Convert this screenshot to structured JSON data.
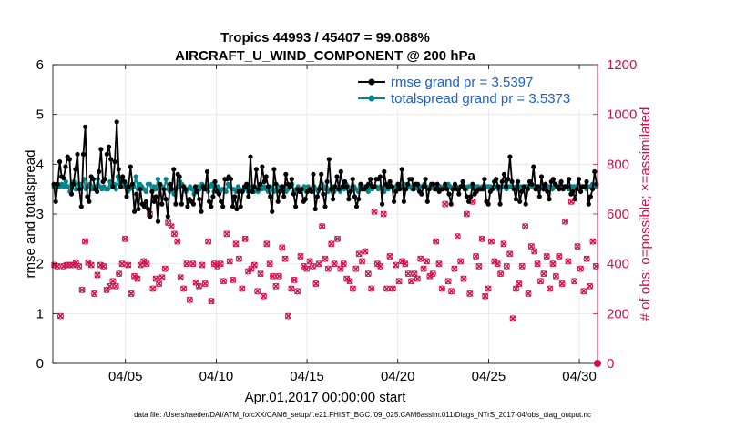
{
  "chart_data": {
    "type": "line",
    "title": "Tropics 44993 / 45407 = 99.088%",
    "subtitle": "AIRCRAFT_U_WIND_COMPONENT @ 200 hPa",
    "xlabel": "Apr.01,2017 00:00:00 start",
    "ylabel_left": "rmse and totalspread",
    "ylabel_right": "# of obs: o=possible; ×=assimilated",
    "footer": "data file: /Users/raeder/DAI/ATM_forcXX/CAM6_setup/f.e21.FHIST_BGC.f09_025.CAM6assim.011/Diags_NTrS_2017-04/obs_diag_output.nc",
    "xlim": [
      1,
      31
    ],
    "ylim_left": [
      0,
      6
    ],
    "ylim_right": [
      0,
      1200
    ],
    "x_ticks": [
      5,
      10,
      15,
      20,
      25,
      30
    ],
    "x_tick_labels": [
      "04/05",
      "04/10",
      "04/15",
      "04/20",
      "04/25",
      "04/30"
    ],
    "y_left_ticks": [
      "0",
      "1",
      "2",
      "3",
      "4",
      "5",
      "6"
    ],
    "y_right_ticks": [
      "0",
      "200",
      "400",
      "600",
      "800",
      "1000",
      "1200"
    ],
    "colors": {
      "rmse": "#000000",
      "spread": "#00868b",
      "obs": "#d0104c",
      "right_axis": "#d0104c",
      "legend_text": "#1a5fd6"
    },
    "series": [
      {
        "name": "rmse grand pr = 3.5397",
        "values": [
          3.6,
          3.25,
          3.6,
          4.05,
          3.75,
          3.72,
          3.95,
          4.15,
          4.1,
          3.4,
          3.6,
          3.9,
          4.2,
          3.5,
          3.15,
          4.2,
          4.75,
          3.35,
          3.25,
          3.75,
          3.7,
          3.5,
          3.45,
          3.85,
          4.3,
          3.65,
          3.7,
          4.2,
          4.35,
          4.1,
          3.55,
          4.05,
          4.85,
          3.9,
          3.55,
          3.75,
          3.65,
          3.35,
          3.55,
          3.95,
          3.6,
          3.05,
          3.4,
          3.1,
          3.5,
          3.2,
          3.15,
          3.25,
          3.1,
          2.95,
          3.45,
          3.25,
          3.35,
          2.85,
          3.6,
          3.2,
          3.5,
          3.3,
          2.95,
          3.6,
          3.5,
          3.9,
          3.2,
          3.8,
          3.75,
          3.2,
          3.55,
          3.5,
          3.15,
          3.3,
          3.25,
          3.2,
          3.55,
          3.45,
          3.3,
          3.05,
          3.55,
          3.5,
          3.85,
          3.25,
          3.15,
          3.35,
          3.65,
          3.45,
          3.4,
          3.25,
          3.15,
          3.7,
          3.7,
          3.75,
          3.7,
          3.15,
          3.35,
          3.1,
          3.45,
          3.15,
          3.45,
          3.55,
          3.6,
          3.35,
          4.15,
          3.45,
          3.55,
          3.9,
          3.5,
          3.6,
          3.95,
          3.65,
          3.75,
          3.55,
          3.35,
          3.05,
          3.9,
          3.6,
          3.25,
          3.45,
          3.55,
          3.35,
          3.8,
          3.6,
          3.55,
          3.7,
          3.4,
          3.15,
          3.5,
          3.45,
          3.5,
          3.25,
          3.3,
          3.45,
          3.5,
          3.45,
          3.8,
          3.1,
          3.35,
          3.5,
          3.8,
          3.4,
          3.15,
          3.65,
          4.1,
          3.5,
          3.3,
          3.55,
          3.75,
          3.5,
          3.85,
          3.55,
          3.65,
          3.55,
          3.3,
          3.45,
          3.7,
          3.35,
          3.15,
          3.3,
          3.6,
          3.5,
          3.5,
          3.55,
          3.6,
          3.7,
          3.55,
          3.55,
          3.7,
          3.7,
          3.75,
          3.2,
          3.85,
          3.6,
          3.55,
          3.65,
          3.55,
          3.25,
          3.45,
          3.6,
          3.5,
          3.9,
          3.25,
          3.5,
          3.6,
          3.7,
          3.7,
          3.5,
          3.6,
          3.6,
          3.45,
          3.4,
          3.55,
          3.7,
          3.25,
          3.5,
          3.6,
          3.6,
          3.5,
          3.6,
          3.45,
          3.5,
          3.5,
          3.6,
          3.5,
          3.4,
          3.2,
          3.5,
          3.6,
          3.5,
          3.4,
          3.55,
          3.65,
          3.5,
          3.35,
          3.25,
          3.35,
          3.6,
          3.4,
          3.45,
          3.5,
          3.5,
          3.5,
          3.7,
          3.25,
          3.2,
          3.45,
          3.5,
          3.65,
          3.7,
          3.55,
          3.2,
          3.65,
          3.8,
          3.55,
          3.7,
          4.15,
          3.65,
          3.5,
          3.3,
          3.65,
          3.25,
          3.45,
          3.55,
          3.2,
          3.5,
          3.65,
          3.6,
          3.95,
          3.5,
          3.55,
          3.35,
          3.75,
          3.5,
          3.6,
          3.45,
          3.3,
          3.65,
          3.7,
          3.6,
          3.55,
          3.5,
          3.65,
          3.5,
          3.55,
          3.55,
          3.7,
          3.4,
          3.45,
          3.3,
          3.5,
          3.7,
          3.45,
          3.55,
          3.55,
          3.65,
          3.2,
          3.35,
          3.5,
          3.85,
          3.6
        ]
      },
      {
        "name": "totalspread grand pr = 3.5373",
        "values": [
          3.55,
          3.55,
          3.55,
          3.55,
          3.6,
          3.55,
          3.65,
          3.55,
          3.45,
          3.6,
          3.65,
          3.5,
          3.6,
          3.6,
          3.55,
          3.7,
          3.5,
          3.55,
          3.6,
          3.5,
          3.55,
          3.55,
          3.7,
          3.55,
          3.5,
          3.55,
          3.5,
          3.5,
          3.65,
          3.55,
          3.6,
          3.5,
          3.75,
          3.6,
          3.7,
          3.55,
          3.6,
          3.45,
          3.5,
          3.55,
          3.55,
          3.75,
          3.5,
          3.6,
          3.55,
          3.5,
          3.45,
          3.6,
          3.6,
          3.45,
          3.55,
          3.5,
          3.7,
          3.55,
          3.55,
          3.5,
          3.7,
          3.5,
          3.45,
          3.5,
          3.4,
          3.5,
          3.55,
          3.65,
          3.6,
          3.55,
          3.45,
          3.5,
          3.55,
          3.5,
          3.4,
          3.45,
          3.55,
          3.5,
          3.6,
          3.55,
          3.55,
          3.45,
          3.55,
          3.6,
          3.45,
          3.5,
          3.55,
          3.45,
          3.5,
          3.5,
          3.45,
          3.6,
          3.55,
          3.5,
          3.5,
          3.45,
          3.55,
          3.5,
          3.45,
          3.5,
          3.55,
          3.45,
          3.5,
          3.55,
          3.45,
          3.5,
          3.45,
          3.6,
          3.5,
          3.55,
          3.5,
          3.45,
          3.55,
          3.5,
          3.45,
          3.5,
          3.55,
          3.45,
          3.5,
          3.55,
          3.45,
          3.5,
          3.55,
          3.6,
          3.45,
          3.5,
          3.55,
          3.45,
          3.5,
          3.55,
          3.45,
          3.55,
          3.5,
          3.45,
          3.55,
          3.5,
          3.45,
          3.55,
          3.6,
          3.5,
          3.55,
          3.45,
          3.5,
          3.55,
          3.45,
          3.5,
          3.5,
          3.45,
          3.55,
          3.5,
          3.6,
          3.55,
          3.45,
          3.5,
          3.55,
          3.5,
          3.45,
          3.55,
          3.5,
          3.55,
          3.5,
          3.45,
          3.55,
          3.5,
          3.55,
          3.55,
          3.5,
          3.55,
          3.5,
          3.45,
          3.55,
          3.5,
          3.55,
          3.55,
          3.5,
          3.55,
          3.5,
          3.55,
          3.55,
          3.6,
          3.5,
          3.55,
          3.55,
          3.5,
          3.55,
          3.55,
          3.5,
          3.55,
          3.55,
          3.6,
          3.55,
          3.5,
          3.55,
          3.55,
          3.5,
          3.5,
          3.55,
          3.55,
          3.5,
          3.55,
          3.55,
          3.6,
          3.55,
          3.5,
          3.55,
          3.55,
          3.5,
          3.55,
          3.55,
          3.55,
          3.5,
          3.55,
          3.55,
          3.55,
          3.5,
          3.55,
          3.55,
          3.5,
          3.55,
          3.5,
          3.55,
          3.55,
          3.55,
          3.5,
          3.55,
          3.55,
          3.5,
          3.55,
          3.55,
          3.55,
          3.5,
          3.55,
          3.55,
          3.55,
          3.5,
          3.55,
          3.55,
          3.55,
          3.5,
          3.55,
          3.55,
          3.55,
          3.6,
          3.55,
          3.55,
          3.5,
          3.55,
          3.55,
          3.55,
          3.5,
          3.55,
          3.55,
          3.55,
          3.5,
          3.55,
          3.55,
          3.55,
          3.6,
          3.55,
          3.55,
          3.55,
          3.5,
          3.55,
          3.55,
          3.55,
          3.55,
          3.6,
          3.55,
          3.55,
          3.55,
          3.5,
          3.55,
          3.55,
          3.6,
          3.55,
          3.55
        ]
      }
    ],
    "obs_possible": [
      395,
      390,
      190,
      390,
      395,
      395,
      395,
      405,
      390,
      295,
      490,
      405,
      395,
      280,
      355,
      395,
      390,
      295,
      310,
      330,
      310,
      360,
      400,
      500,
      395,
      280,
      350,
      340,
      395,
      410,
      400,
      600,
      300,
      340,
      320,
      345,
      380,
      565,
      550,
      520,
      490,
      345,
      300,
      400,
      255,
      400,
      325,
      310,
      395,
      320,
      490,
      250,
      400,
      390,
      400,
      330,
      520,
      410,
      335,
      480,
      420,
      300,
      500,
      370,
      380,
      395,
      290,
      360,
      270,
      480,
      400,
      350,
      310,
      350,
      465,
      420,
      190,
      300,
      335,
      290,
      430,
      390,
      380,
      410,
      390,
      320,
      400,
      550,
      420,
      380,
      480,
      400,
      500,
      380,
      400,
      340,
      330,
      300,
      380,
      440,
      410,
      450,
      360,
      300,
      610,
      400,
      390,
      600,
      300,
      430,
      300,
      395,
      330,
      410,
      400,
      360,
      330,
      360,
      340,
      420,
      380,
      410,
      350,
      360,
      490,
      400,
      300,
      640,
      330,
      290,
      380,
      510,
      410,
      340,
      600,
      280,
      650,
      430,
      390,
      500,
      270,
      300,
      490,
      410,
      400,
      360,
      480,
      390,
      440,
      180,
      300,
      320,
      390,
      550,
      280,
      470,
      450,
      400,
      330,
      360,
      430,
      300,
      400,
      350,
      430,
      320,
      570,
      410,
      650,
      330,
      470,
      380,
      290,
      420,
      310,
      490,
      390
    ]
  }
}
